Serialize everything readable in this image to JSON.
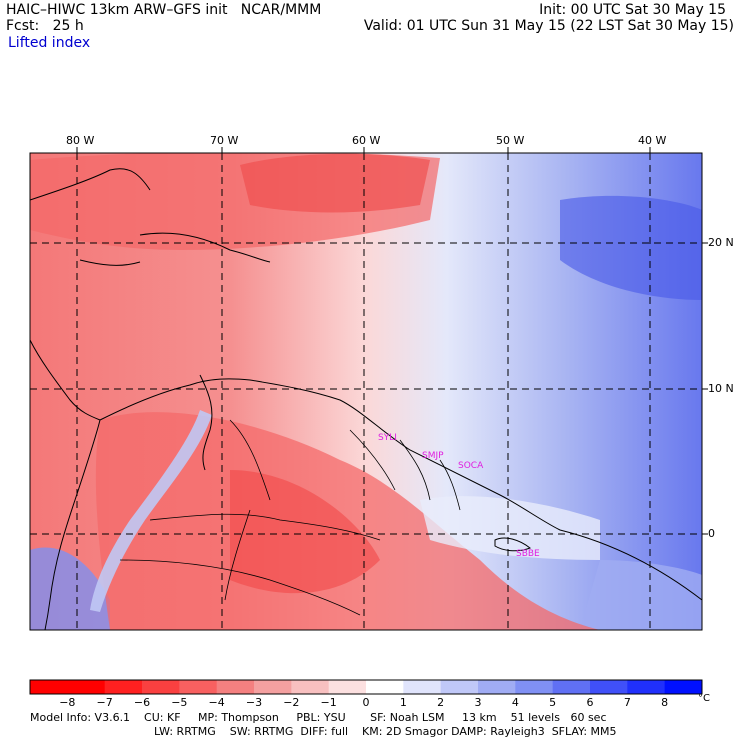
{
  "header": {
    "title": "HAIC–HIWC 13km ARW–GFS init   NCAR/MMM",
    "fcst": "Fcst:   25 h",
    "init": "Init: 00 UTC Sat 30 May 15",
    "valid": "Valid: 01 UTC Sun 31 May 15 (22 LST Sat 30 May 15)",
    "field": "Lifted index"
  },
  "map": {
    "lon_labels": [
      "80 W",
      "70 W",
      "60 W",
      "50 W",
      "40 W"
    ],
    "lat_labels": [
      "20 N",
      "10 N",
      "0"
    ],
    "stations": [
      "SYLI",
      "SMJP",
      "SOCA",
      "SBBE"
    ],
    "region": "Caribbean and northern South America"
  },
  "colorbar": {
    "ticks": [
      "−8",
      "−7",
      "−6",
      "−5",
      "−4",
      "−3",
      "−2",
      "−1",
      "0",
      "1",
      "2",
      "3",
      "4",
      "5",
      "6",
      "7",
      "8"
    ],
    "unit": "°C",
    "colors": [
      "#ff0000",
      "#ff2020",
      "#fa4040",
      "#f86060",
      "#f48080",
      "#f4a0a0",
      "#f8c0c0",
      "#fce0e0",
      "#ffffff",
      "#e0e4fc",
      "#c0c8f8",
      "#a0acf4",
      "#8090f4",
      "#6070f4",
      "#4050f8",
      "#2030fc",
      "#0010ff"
    ]
  },
  "footer": {
    "line1": "Model Info: V3.6.1    CU: KF     MP: Thompson     PBL: YSU       SF: Noah LSM     13 km    51 levels   60 sec",
    "line2": "LW: RRTMG    SW: RRTMG  DIFF: full    KM: 2D Smagor DAMP: Rayleigh3  SFLAY: MM5"
  }
}
